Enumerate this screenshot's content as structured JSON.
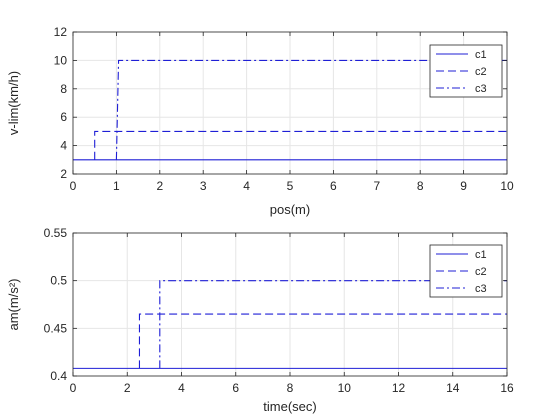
{
  "chart_data": [
    {
      "type": "line",
      "xlabel": "pos(m)",
      "ylabel": "v-lim(km/h)",
      "xlim": [
        0,
        10
      ],
      "ylim": [
        2,
        12
      ],
      "xticks": [
        "0",
        "1",
        "2",
        "3",
        "4",
        "5",
        "6",
        "7",
        "8",
        "9",
        "10"
      ],
      "yticks": [
        "2",
        "4",
        "6",
        "8",
        "10",
        "12"
      ],
      "grid": true,
      "legend_position": "top-right",
      "series": [
        {
          "name": "c1",
          "style": "solid",
          "x": [
            0,
            10
          ],
          "y": [
            3,
            3
          ]
        },
        {
          "name": "c2",
          "style": "dashed",
          "x": [
            0.5,
            0.5,
            10
          ],
          "y": [
            3,
            5,
            5
          ]
        },
        {
          "name": "c3",
          "style": "dashdot",
          "x": [
            1.0,
            1.05,
            10
          ],
          "y": [
            3,
            10,
            10
          ]
        }
      ]
    },
    {
      "type": "line",
      "xlabel": "time(sec)",
      "ylabel": "am(m/s²)",
      "xlim": [
        0,
        16
      ],
      "ylim": [
        0.4,
        0.55
      ],
      "xticks": [
        "0",
        "2",
        "4",
        "6",
        "8",
        "10",
        "12",
        "14",
        "16"
      ],
      "yticks": [
        "0.4",
        "0.45",
        "0.5",
        "0.55"
      ],
      "grid": true,
      "legend_position": "top-right",
      "series": [
        {
          "name": "c1",
          "style": "solid",
          "x": [
            0,
            16
          ],
          "y": [
            0.408,
            0.408
          ]
        },
        {
          "name": "c2",
          "style": "dashed",
          "x": [
            2.45,
            2.45,
            16
          ],
          "y": [
            0.408,
            0.465,
            0.465
          ]
        },
        {
          "name": "c3",
          "style": "dashdot",
          "x": [
            3.2,
            3.2,
            16
          ],
          "y": [
            0.408,
            0.5,
            0.5
          ]
        }
      ]
    }
  ],
  "colors": {
    "series": "#1f1fd6",
    "grid": "#e6e6e6",
    "axes": "#262626"
  }
}
